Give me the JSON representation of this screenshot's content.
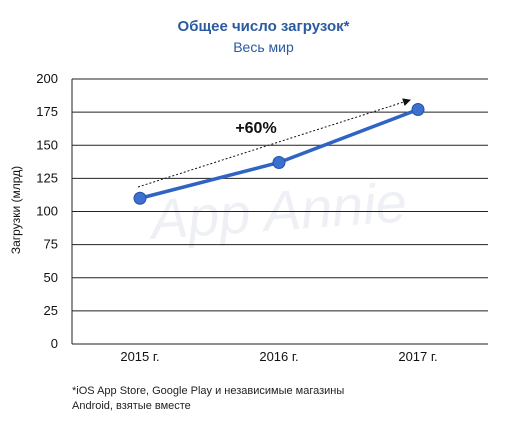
{
  "colors": {
    "title": "#2a5aa0",
    "line": "#2f63c4",
    "marker": "#3b6fd0",
    "grid": "#222222",
    "watermark": "#eef0f5"
  },
  "watermark": "App Annie",
  "footnote": "*iOS App Store, Google Play и независимые магазины Android, взятые вместе",
  "chart_data": {
    "type": "line",
    "title": "Общее число загрузок*",
    "subtitle": "Весь мир",
    "xlabel": "",
    "ylabel": "Загрузки (млрд)",
    "categories": [
      "2015 г.",
      "2016 г.",
      "2017 г."
    ],
    "series": [
      {
        "values": [
          110,
          137,
          177
        ]
      }
    ],
    "ylim": [
      0,
      200
    ],
    "yticks": [
      0,
      25,
      50,
      75,
      100,
      125,
      150,
      175,
      200
    ],
    "grid": "horizontal",
    "annotation": "+60%"
  }
}
